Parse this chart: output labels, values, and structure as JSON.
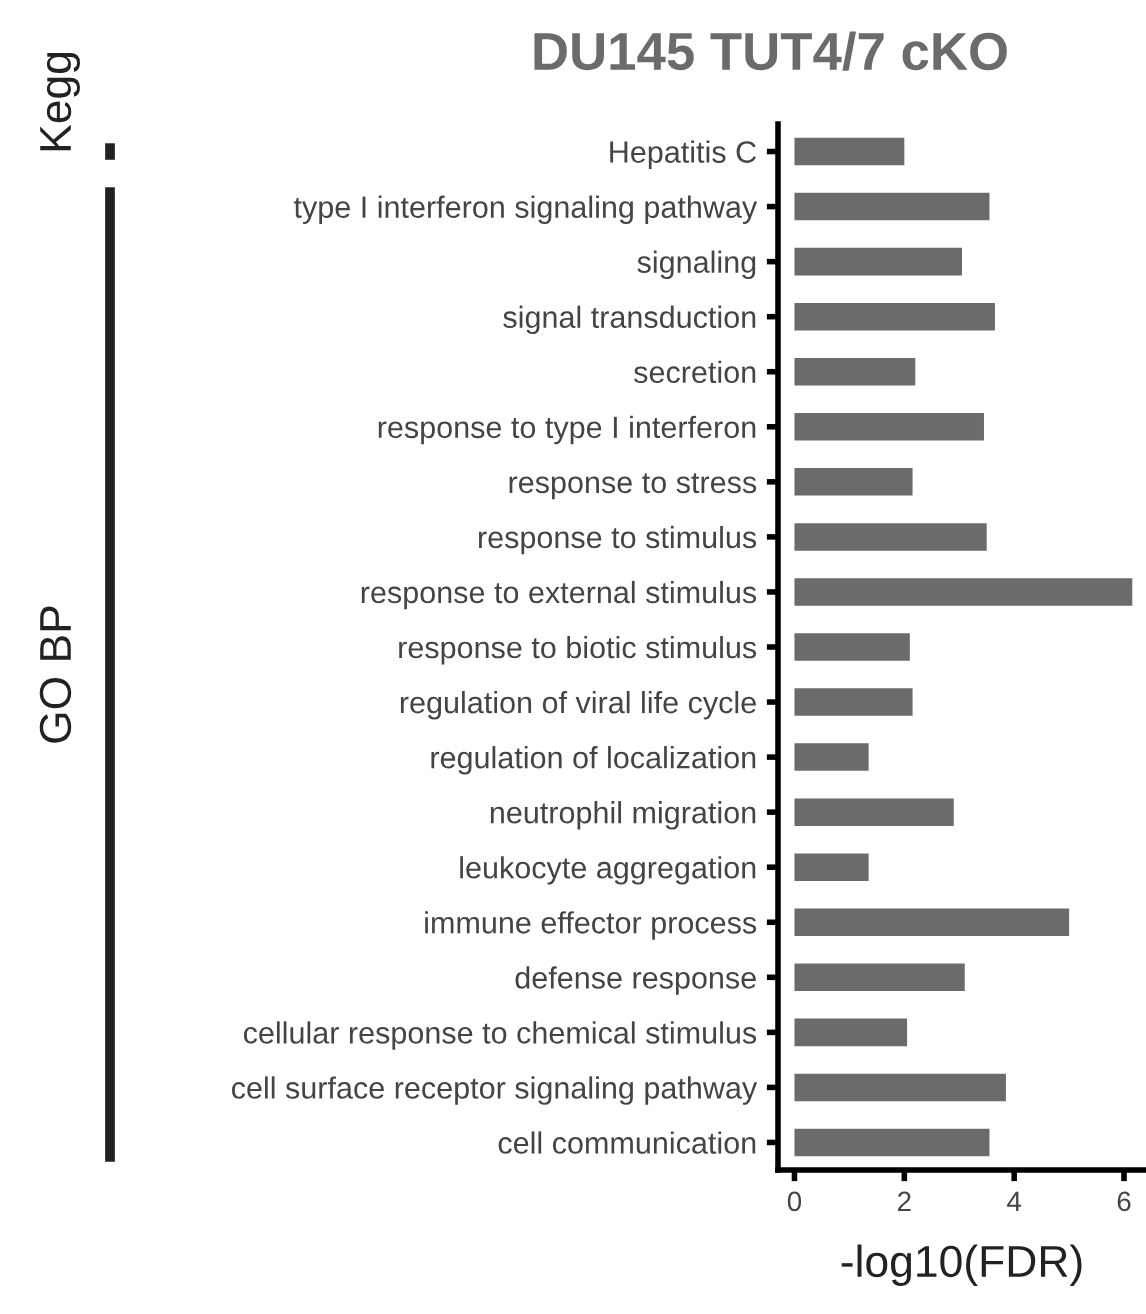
{
  "chart_data": {
    "type": "bar",
    "orientation": "horizontal",
    "title": "DU145 TUT4/7 cKO",
    "xlabel": "-log10(FDR)",
    "categories": [
      "Hepatitis C",
      "type I interferon signaling pathway",
      "signaling",
      "signal transduction",
      "secretion",
      "response to type I interferon",
      "response to stress",
      "response to stimulus",
      "response to external stimulus",
      "response to biotic stimulus",
      "regulation of viral life cycle",
      "regulation of localization",
      "neutrophil migration",
      "leukocyte aggregation",
      "immune effector process",
      "defense response",
      "cellular response to chemical stimulus",
      "cell surface receptor signaling pathway",
      "cell communication"
    ],
    "values": [
      2.0,
      3.55,
      3.05,
      3.65,
      2.2,
      3.45,
      2.15,
      3.5,
      6.15,
      2.1,
      2.15,
      1.35,
      2.9,
      1.35,
      5.0,
      3.1,
      2.05,
      3.85,
      3.55
    ],
    "color": "#6b6b6b",
    "xlim": [
      -0.3,
      6.4
    ],
    "xticks": [
      0,
      2,
      4,
      6
    ],
    "grid": false,
    "annotations": [
      "Kegg",
      "GO BP"
    ]
  }
}
